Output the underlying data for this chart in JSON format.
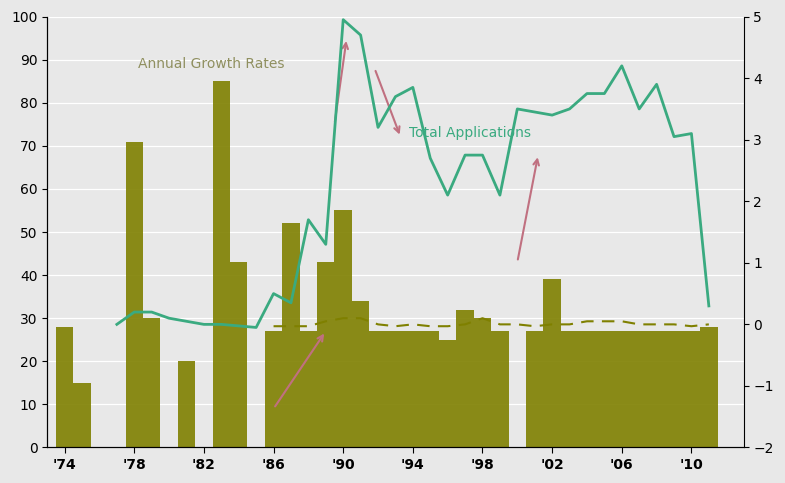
{
  "bar_data": {
    "1974": 28,
    "1975": 15,
    "1978": 71,
    "1979": 30,
    "1981": 20,
    "1983": 85,
    "1984": 43,
    "1986": 27,
    "1987": 52,
    "1988": 27,
    "1989": 43,
    "1990": 55,
    "1991": 34,
    "1992": 27,
    "1993": 27,
    "1994": 27,
    "1995": 27,
    "1996": 25,
    "1997": 32,
    "1998": 30,
    "1999": 27,
    "2001": 27,
    "2002": 39,
    "2003": 27,
    "2004": 27,
    "2005": 27,
    "2006": 27,
    "2007": 27,
    "2008": 27,
    "2009": 27,
    "2010": 27,
    "2011": 28
  },
  "line_data": {
    "1977": 0.0,
    "1978": 0.2,
    "1979": 0.2,
    "1980": 0.1,
    "1981": 0.05,
    "1982": 0.0,
    "1983": 0.0,
    "1985": -0.05,
    "1986": 0.5,
    "1987": 0.35,
    "1988": 1.7,
    "1989": 1.3,
    "1990": 4.95,
    "1991": 4.7,
    "1992": 3.2,
    "1993": 3.7,
    "1994": 3.85,
    "1995": 2.7,
    "1996": 2.1,
    "1997": 2.75,
    "1998": 2.75,
    "1999": 2.1,
    "2000": 3.5,
    "2001": 3.45,
    "2002": 3.4,
    "2003": 3.5,
    "2004": 3.75,
    "2005": 3.75,
    "2006": 4.2,
    "2007": 3.5,
    "2008": 3.9,
    "2009": 3.05,
    "2010": 3.1,
    "2011": 0.3
  },
  "dash_data": {
    "1986": -0.03,
    "1987": -0.03,
    "1988": -0.03,
    "1989": 0.05,
    "1990": 0.1,
    "1991": 0.1,
    "1992": 0.0,
    "1993": -0.03,
    "1994": 0.0,
    "1995": -0.03,
    "1996": -0.03,
    "1997": 0.0,
    "1998": 0.1,
    "1999": 0.0,
    "2000": 0.0,
    "2001": -0.03,
    "2002": 0.0,
    "2003": 0.0,
    "2004": 0.05,
    "2005": 0.05,
    "2006": 0.05,
    "2007": 0.0,
    "2008": 0.0,
    "2009": 0.0,
    "2010": -0.03,
    "2011": 0.0
  },
  "bar_color": "#7f8000",
  "line_color": "#3aaa80",
  "dashed_color": "#7f8000",
  "bg_color": "#e8e8e8",
  "grid_color": "#ffffff",
  "xlim": [
    1973,
    2013
  ],
  "left_ylim": [
    0,
    100
  ],
  "right_ylim": [
    -2,
    5
  ],
  "xtick_years": [
    1974,
    1978,
    1982,
    1986,
    1990,
    1994,
    1998,
    2002,
    2006,
    2010
  ],
  "xtick_labels": [
    "'74",
    "'78",
    "'82",
    "'86",
    "'90",
    "'94",
    "'98",
    "'02",
    "'06",
    "'10"
  ],
  "left_yticks": [
    0,
    10,
    20,
    30,
    40,
    50,
    60,
    70,
    80,
    90,
    100
  ],
  "right_yticks": [
    -2,
    -1,
    0,
    1,
    2,
    3,
    4,
    5
  ],
  "label_growth": "Annual Growth Rates",
  "label_total": "Total Applications",
  "arrow_color": "#c07080"
}
